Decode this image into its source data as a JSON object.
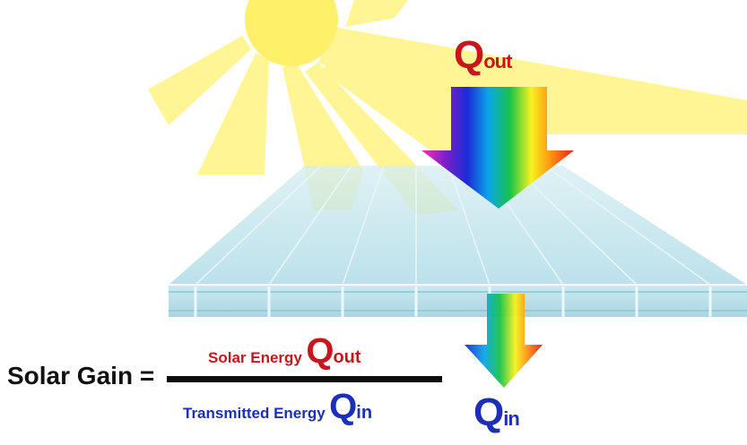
{
  "diagram": {
    "q_out_top": {
      "q": "Q",
      "sub": "out"
    },
    "q_in_below": {
      "q": "Q",
      "sub": "in"
    },
    "formula": {
      "lhs": "Solar Gain =",
      "numerator": {
        "label": "Solar Energy",
        "q": "Q",
        "sub": "out"
      },
      "denominator": {
        "label": "Transmitted Energy",
        "q": "Q",
        "sub": "in"
      }
    }
  },
  "colors": {
    "sun": "#fff06a",
    "rays": "#fff48a",
    "q_out_red": "#c8161d",
    "q_in_blue": "#1c2fb8",
    "panel_tint": "#bfe6ee",
    "rainbow": [
      "#ff2db4",
      "#7a1fc9",
      "#1b2bd6",
      "#0aa6e8",
      "#18c24a",
      "#f6f21e",
      "#ff8a12",
      "#ee1c1c"
    ]
  }
}
